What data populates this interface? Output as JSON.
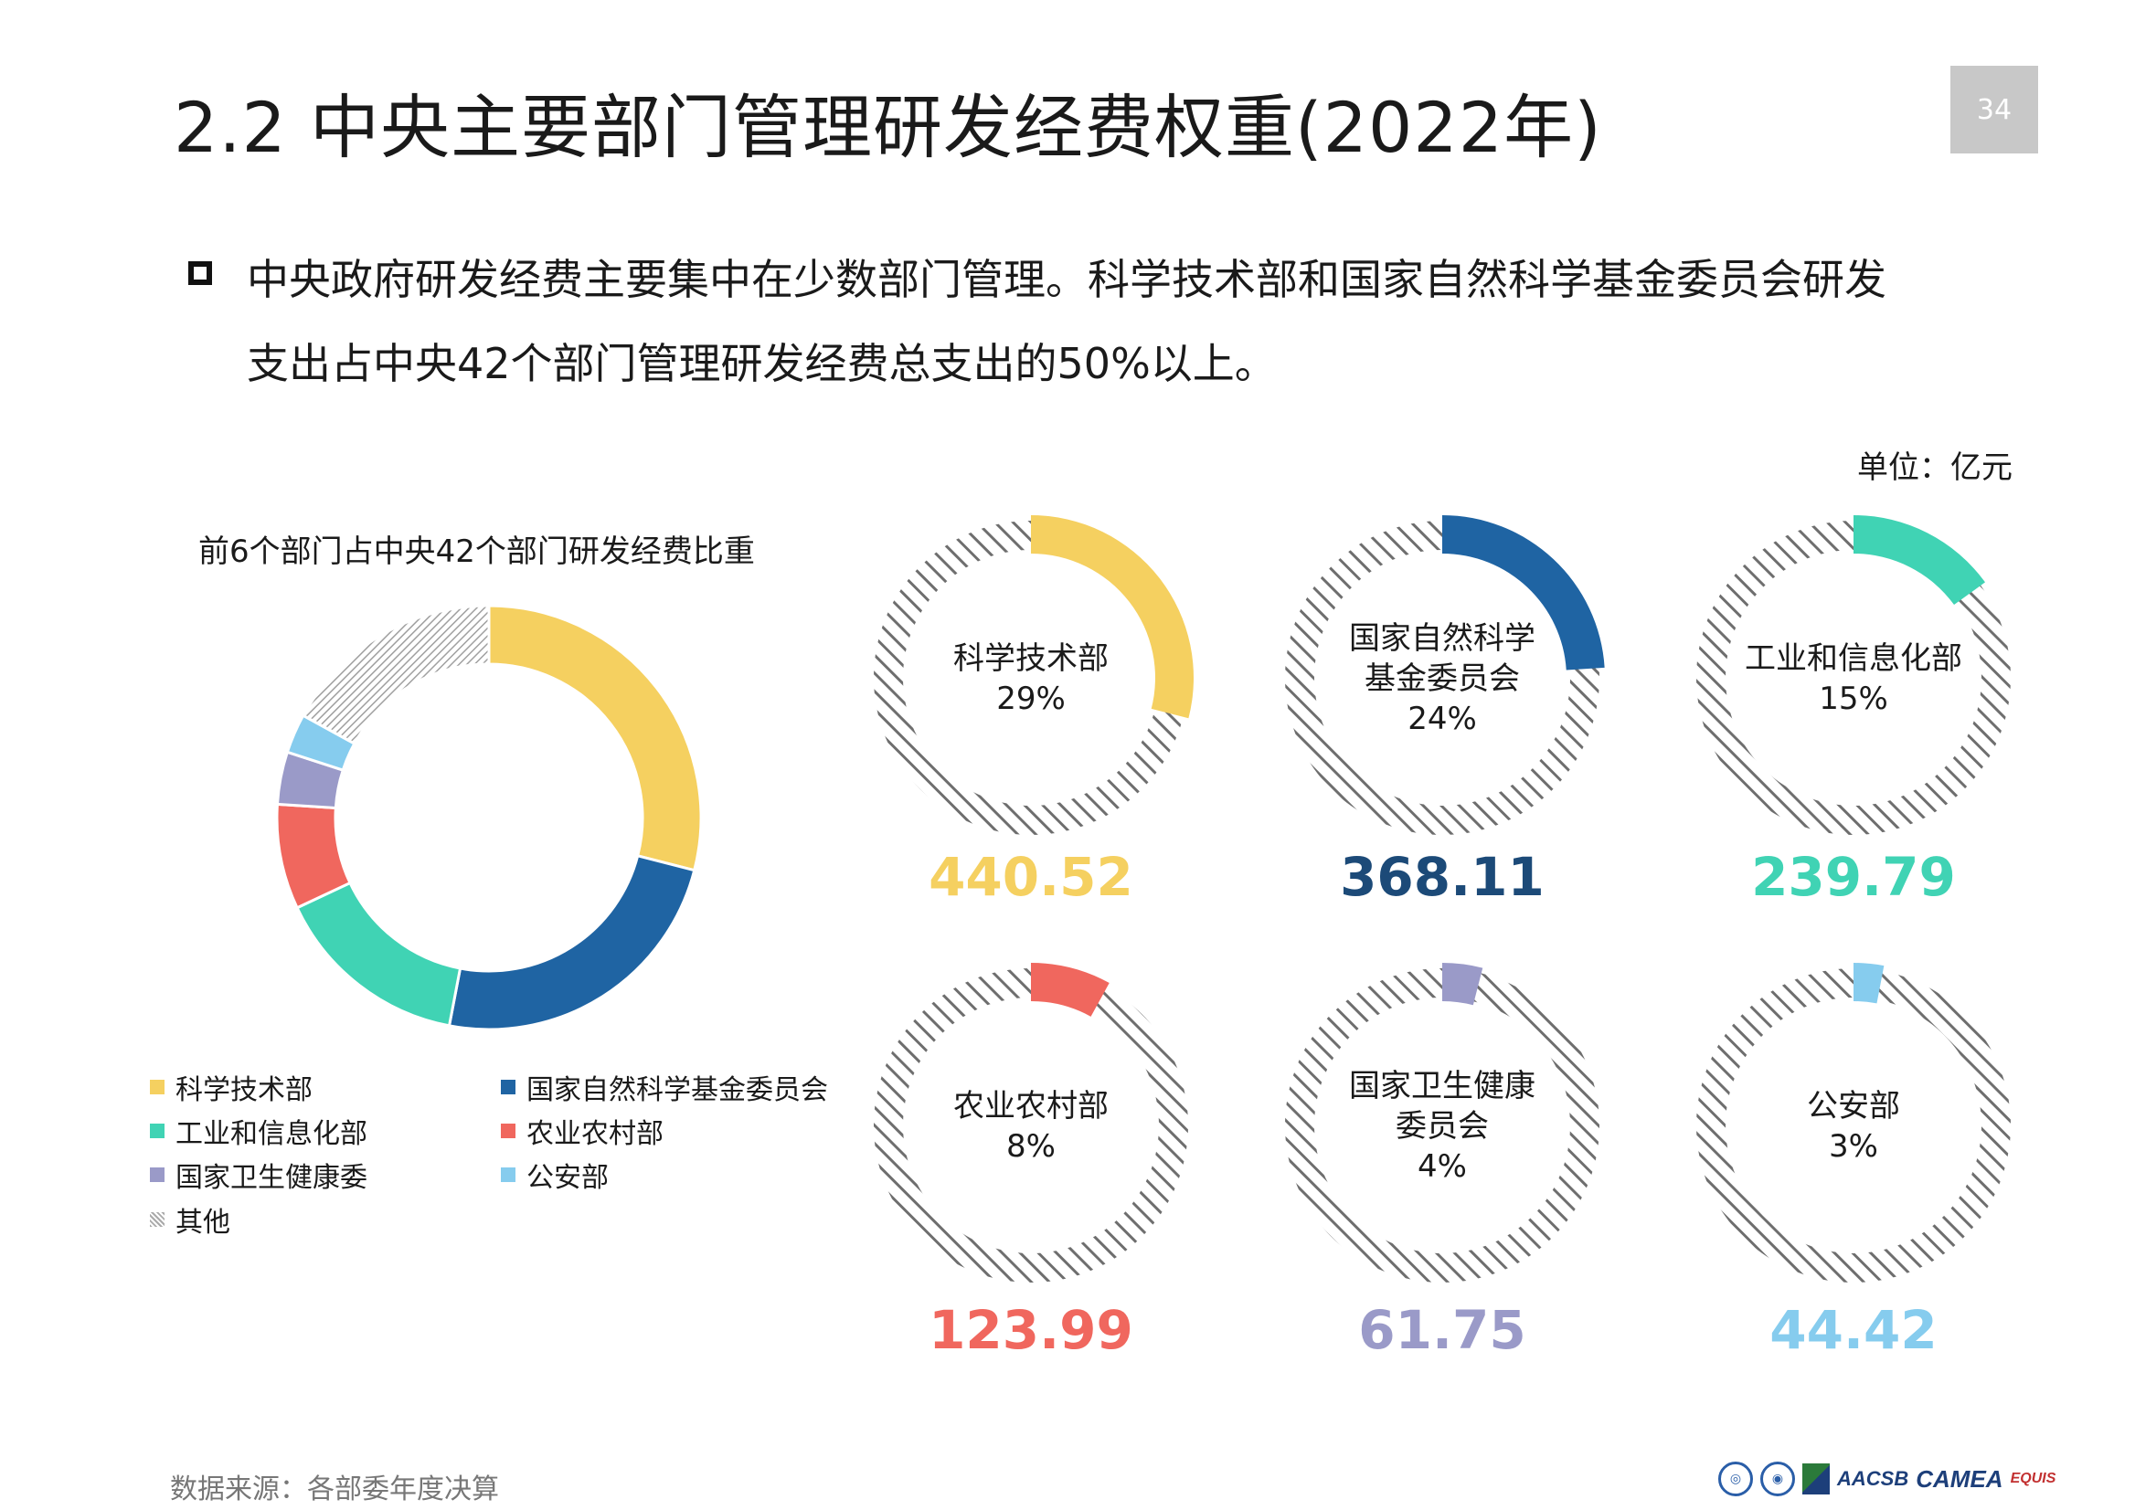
{
  "header": {
    "title": "2.2  中央主要部门管理研发经费权重(2022年)",
    "page_number": "34"
  },
  "bullet": {
    "line1": "中央政府研发经费主要集中在少数部门管理。科学技术部和国家自然科学基金委员会研发",
    "line2": "支出占中央42个部门管理研发经费总支出的50%以上。"
  },
  "unit": "单位：亿元",
  "source": "数据来源：各部委年度决算",
  "logos": {
    "text1": "AACSB",
    "text2": "CAMEA",
    "text3": "EQUIS"
  },
  "colors": {
    "most": "#F5D060",
    "nsfc": "#1F64A3",
    "miit": "#40D3B4",
    "moa": "#F0675E",
    "nhc": "#9A9AC8",
    "mps": "#86CCEE",
    "other": "#9a9a9a"
  },
  "chart_data": [
    {
      "type": "pie",
      "title": "前6个部门占中央42个部门研发经费比重",
      "categories": [
        "科学技术部",
        "国家自然科学基金委员会",
        "工业和信息化部",
        "农业农村部",
        "国家卫生健康委",
        "公安部",
        "其他"
      ],
      "values": [
        29,
        24,
        15,
        8,
        4,
        3,
        17
      ],
      "legend": [
        "科学技术部",
        "国家自然科学基金委员会",
        "工业和信息化部",
        "农业农村部",
        "国家卫生健康委",
        "公安部",
        "其他"
      ],
      "legend_position": "bottom"
    },
    {
      "type": "pie",
      "small_multiples": true,
      "items": [
        {
          "label_lines": [
            "科学技术部"
          ],
          "percent_label": "29%",
          "percent": 29,
          "amount": "440.52",
          "color_key": "most"
        },
        {
          "label_lines": [
            "国家自然科学",
            "基金委员会"
          ],
          "percent_label": "24%",
          "percent": 24,
          "amount": "368.11",
          "color_key": "nsfc"
        },
        {
          "label_lines": [
            "工业和信息化部"
          ],
          "percent_label": "15%",
          "percent": 15,
          "amount": "239.79",
          "color_key": "miit"
        },
        {
          "label_lines": [
            "农业农村部"
          ],
          "percent_label": "8%",
          "percent": 8,
          "amount": "123.99",
          "color_key": "moa"
        },
        {
          "label_lines": [
            "国家卫生健康",
            "委员会"
          ],
          "percent_label": "4%",
          "percent": 4,
          "amount": "61.75",
          "color_key": "nhc"
        },
        {
          "label_lines": [
            "公安部"
          ],
          "percent_label": "3%",
          "percent": 3,
          "amount": "44.42",
          "color_key": "mps"
        }
      ]
    }
  ]
}
